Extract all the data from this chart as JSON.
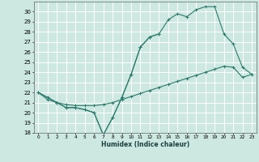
{
  "xlabel": "Humidex (Indice chaleur)",
  "background_color": "#cce8e0",
  "grid_color": "#ffffff",
  "line_color": "#2a7a6a",
  "x_values": [
    0,
    1,
    2,
    3,
    4,
    5,
    6,
    7,
    8,
    9,
    10,
    11,
    12,
    13,
    14,
    15,
    16,
    17,
    18,
    19,
    20,
    21,
    22,
    23
  ],
  "line_upper": [
    22,
    21.5,
    21.0,
    20.5,
    20.5,
    20.3,
    20.0,
    17.8,
    19.5,
    21.5,
    23.8,
    26.5,
    27.5,
    27.8,
    29.2,
    29.8,
    29.5,
    30.2,
    30.5,
    30.5,
    27.8,
    26.8,
    24.5,
    23.8
  ],
  "line_mid": [
    22,
    21.5,
    21.0,
    20.5,
    20.5,
    20.3,
    20.0,
    17.8,
    19.5,
    21.5,
    23.8,
    26.5,
    27.5,
    27.8,
    null,
    null,
    null,
    null,
    null,
    null,
    null,
    null,
    null,
    null
  ],
  "line_lower": [
    22,
    21.3,
    21.0,
    20.8,
    20.7,
    20.7,
    20.7,
    20.8,
    21.0,
    21.3,
    21.6,
    21.9,
    22.2,
    22.5,
    22.8,
    23.1,
    23.4,
    23.7,
    24.0,
    24.3,
    24.6,
    24.5,
    23.5,
    23.8
  ],
  "ylim": [
    18,
    31
  ],
  "xlim": [
    -0.5,
    23.5
  ],
  "yticks": [
    18,
    19,
    20,
    21,
    22,
    23,
    24,
    25,
    26,
    27,
    28,
    29,
    30
  ],
  "xticks": [
    0,
    1,
    2,
    3,
    4,
    5,
    6,
    7,
    8,
    9,
    10,
    11,
    12,
    13,
    14,
    15,
    16,
    17,
    18,
    19,
    20,
    21,
    22,
    23
  ]
}
